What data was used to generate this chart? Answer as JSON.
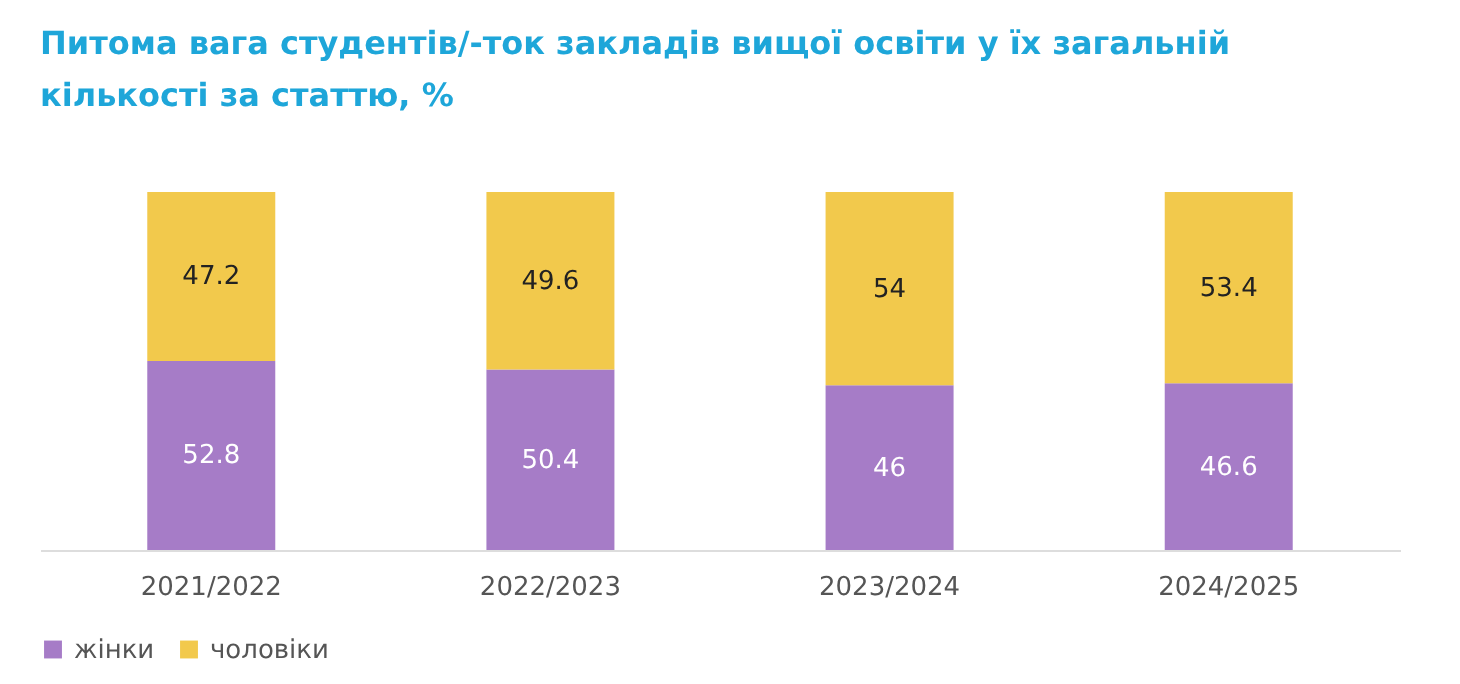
{
  "chart_data": {
    "type": "bar",
    "title": "Питома вага студентів/-ток закладів вищої освіти у їх загальній кількості за статтю, %",
    "categories": [
      "2021/2022",
      "2022/2023",
      "2023/2024",
      "2024/2025"
    ],
    "series": [
      {
        "name": "жінки",
        "color": "#a67cc7",
        "values": [
          52.8,
          50.4,
          46,
          46.6
        ]
      },
      {
        "name": "чоловіки",
        "color": "#f2c94c",
        "values": [
          47.2,
          49.6,
          54,
          53.4
        ]
      }
    ],
    "stacked": true,
    "ylim": [
      0,
      100
    ],
    "data_labels": true,
    "legend": "bottom",
    "grid": false,
    "tick_labels": "x"
  }
}
